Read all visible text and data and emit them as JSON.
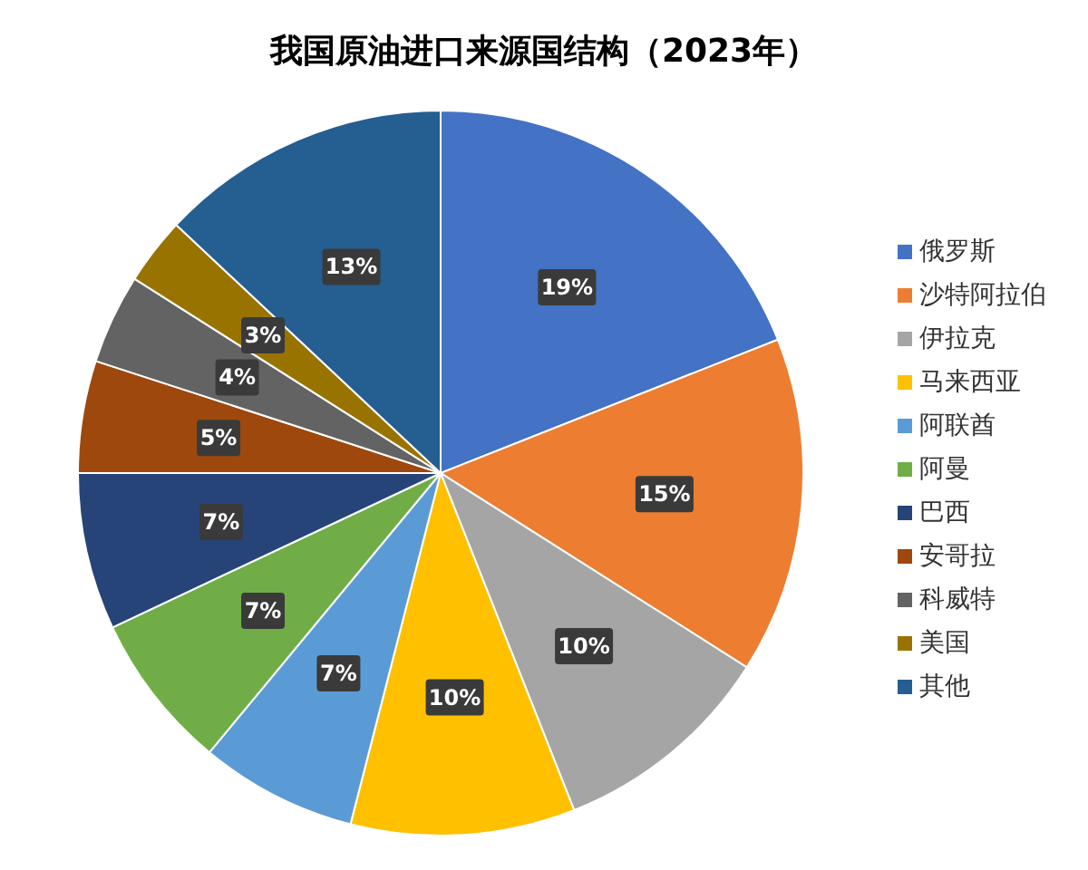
{
  "chart_data": {
    "type": "pie",
    "title": "我国原油进口来源国结构（2023年）",
    "categories": [
      "俄罗斯",
      "沙特阿拉伯",
      "伊拉克",
      "马来西亚",
      "阿联酋",
      "阿曼",
      "巴西",
      "安哥拉",
      "科威特",
      "美国",
      "其他"
    ],
    "values": [
      19,
      15,
      10,
      10,
      7,
      7,
      7,
      5,
      4,
      3,
      13
    ],
    "value_labels": [
      "19%",
      "15%",
      "10%",
      "10%",
      "7%",
      "7%",
      "7%",
      "5%",
      "4%",
      "3%",
      "13%"
    ],
    "colors": [
      "#4472c4",
      "#ed7d31",
      "#a5a5a5",
      "#ffc000",
      "#5b9bd5",
      "#70ad47",
      "#264478",
      "#9e480e",
      "#636363",
      "#997300",
      "#255e91"
    ],
    "legend": "right"
  }
}
